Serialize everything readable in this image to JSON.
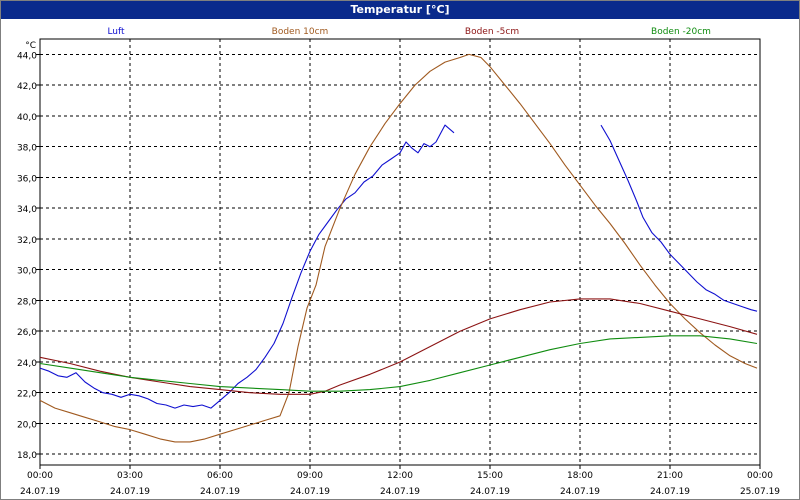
{
  "window": {
    "title": "Temperatur [°C]"
  },
  "chart_data": {
    "type": "line",
    "title": "Temperatur [°C]",
    "ylabel": "°C",
    "xlabel": "",
    "ylim": [
      17.3,
      45
    ],
    "xlim": [
      0,
      24
    ],
    "grid": true,
    "legend_position": "top",
    "y_ticks": [
      "18,0",
      "20,0",
      "22,0",
      "24,0",
      "26,0",
      "28,0",
      "30,0",
      "32,0",
      "34,0",
      "36,0",
      "38,0",
      "40,0",
      "42,0",
      "44,0"
    ],
    "x_ticks": [
      {
        "time": "00:00",
        "date": "24.07.19"
      },
      {
        "time": "03:00",
        "date": "24.07.19"
      },
      {
        "time": "06:00",
        "date": "24.07.19"
      },
      {
        "time": "09:00",
        "date": "24.07.19"
      },
      {
        "time": "12:00",
        "date": "24.07.19"
      },
      {
        "time": "15:00",
        "date": "24.07.19"
      },
      {
        "time": "18:00",
        "date": "24.07.19"
      },
      {
        "time": "21:00",
        "date": "24.07.19"
      },
      {
        "time": "00:00",
        "date": "25.07.19"
      }
    ],
    "series": [
      {
        "name": "Luft",
        "color": "#1010d0",
        "segments": [
          [
            [
              0,
              23.6
            ],
            [
              0.3,
              23.4
            ],
            [
              0.6,
              23.1
            ],
            [
              0.9,
              23.0
            ],
            [
              1.2,
              23.3
            ],
            [
              1.5,
              22.7
            ],
            [
              1.8,
              22.3
            ],
            [
              2.1,
              22.0
            ],
            [
              2.4,
              21.9
            ],
            [
              2.7,
              21.7
            ],
            [
              3.0,
              21.9
            ],
            [
              3.3,
              21.8
            ],
            [
              3.6,
              21.6
            ],
            [
              3.9,
              21.3
            ],
            [
              4.2,
              21.2
            ],
            [
              4.5,
              21.0
            ],
            [
              4.8,
              21.2
            ],
            [
              5.1,
              21.1
            ],
            [
              5.4,
              21.2
            ],
            [
              5.7,
              21.0
            ],
            [
              6.0,
              21.5
            ],
            [
              6.3,
              22.0
            ],
            [
              6.6,
              22.6
            ],
            [
              6.9,
              23.0
            ],
            [
              7.2,
              23.5
            ],
            [
              7.5,
              24.3
            ],
            [
              7.8,
              25.2
            ],
            [
              8.1,
              26.5
            ],
            [
              8.4,
              28.2
            ],
            [
              8.7,
              29.8
            ],
            [
              9.0,
              31.2
            ],
            [
              9.3,
              32.3
            ],
            [
              9.6,
              33.1
            ],
            [
              9.9,
              33.9
            ],
            [
              10.2,
              34.6
            ],
            [
              10.5,
              35.0
            ],
            [
              10.8,
              35.7
            ],
            [
              11.1,
              36.1
            ],
            [
              11.4,
              36.8
            ],
            [
              11.7,
              37.2
            ],
            [
              12.0,
              37.6
            ],
            [
              12.2,
              38.3
            ],
            [
              12.4,
              37.9
            ],
            [
              12.6,
              37.6
            ],
            [
              12.8,
              38.2
            ],
            [
              13.0,
              38.0
            ],
            [
              13.2,
              38.3
            ],
            [
              13.5,
              39.4
            ],
            [
              13.8,
              38.9
            ]
          ],
          [
            [
              18.7,
              39.4
            ],
            [
              19.0,
              38.4
            ],
            [
              19.3,
              37.1
            ],
            [
              19.6,
              35.8
            ],
            [
              19.9,
              34.4
            ],
            [
              20.1,
              33.4
            ],
            [
              20.4,
              32.4
            ],
            [
              20.7,
              31.8
            ],
            [
              21.0,
              31.0
            ],
            [
              21.3,
              30.4
            ],
            [
              21.6,
              29.8
            ],
            [
              21.9,
              29.2
            ],
            [
              22.2,
              28.7
            ],
            [
              22.5,
              28.4
            ],
            [
              22.8,
              28.0
            ],
            [
              23.1,
              27.8
            ],
            [
              23.4,
              27.6
            ],
            [
              23.7,
              27.4
            ],
            [
              23.9,
              27.3
            ]
          ]
        ]
      },
      {
        "name": "Boden 10cm",
        "color": "#a05a20",
        "segments": [
          [
            [
              0,
              21.5
            ],
            [
              0.5,
              21.0
            ],
            [
              1.0,
              20.7
            ],
            [
              1.5,
              20.4
            ],
            [
              2.0,
              20.1
            ],
            [
              2.5,
              19.8
            ],
            [
              3.0,
              19.6
            ],
            [
              3.5,
              19.3
            ],
            [
              4.0,
              19.0
            ],
            [
              4.5,
              18.8
            ],
            [
              5.0,
              18.8
            ],
            [
              5.5,
              19.0
            ],
            [
              6.0,
              19.3
            ],
            [
              6.5,
              19.6
            ],
            [
              7.0,
              19.9
            ],
            [
              7.5,
              20.2
            ],
            [
              8.0,
              20.5
            ],
            [
              8.3,
              22.0
            ],
            [
              8.6,
              25.0
            ],
            [
              8.9,
              27.5
            ],
            [
              9.2,
              29.0
            ],
            [
              9.5,
              31.5
            ],
            [
              10.0,
              34.0
            ],
            [
              10.5,
              36.2
            ],
            [
              11.0,
              38.0
            ],
            [
              11.5,
              39.5
            ],
            [
              12.0,
              40.8
            ],
            [
              12.5,
              42.0
            ],
            [
              13.0,
              42.9
            ],
            [
              13.5,
              43.5
            ],
            [
              14.0,
              43.8
            ],
            [
              14.3,
              44.0
            ],
            [
              14.7,
              43.8
            ],
            [
              15.0,
              43.2
            ],
            [
              15.5,
              42.0
            ],
            [
              16.0,
              40.8
            ],
            [
              16.5,
              39.5
            ],
            [
              17.0,
              38.2
            ],
            [
              17.5,
              36.8
            ],
            [
              18.0,
              35.5
            ],
            [
              18.5,
              34.2
            ],
            [
              19.0,
              33.0
            ],
            [
              19.5,
              31.7
            ],
            [
              20.0,
              30.3
            ],
            [
              20.5,
              29.0
            ],
            [
              21.0,
              27.8
            ],
            [
              21.5,
              26.8
            ],
            [
              22.0,
              25.9
            ],
            [
              22.5,
              25.1
            ],
            [
              23.0,
              24.4
            ],
            [
              23.5,
              23.9
            ],
            [
              23.9,
              23.6
            ]
          ]
        ]
      },
      {
        "name": "Boden -5cm",
        "color": "#8c1414",
        "segments": [
          [
            [
              0,
              24.3
            ],
            [
              1,
              23.9
            ],
            [
              2,
              23.4
            ],
            [
              3,
              23.0
            ],
            [
              4,
              22.7
            ],
            [
              5,
              22.4
            ],
            [
              6,
              22.2
            ],
            [
              7,
              22.0
            ],
            [
              8,
              21.9
            ],
            [
              9,
              21.9
            ],
            [
              9.5,
              22.1
            ],
            [
              10,
              22.5
            ],
            [
              11,
              23.2
            ],
            [
              12,
              24.0
            ],
            [
              13,
              25.0
            ],
            [
              14,
              26.0
            ],
            [
              15,
              26.8
            ],
            [
              16,
              27.4
            ],
            [
              17,
              27.9
            ],
            [
              18,
              28.1
            ],
            [
              19,
              28.1
            ],
            [
              20,
              27.8
            ],
            [
              21,
              27.3
            ],
            [
              22,
              26.8
            ],
            [
              23,
              26.3
            ],
            [
              23.9,
              25.8
            ]
          ]
        ]
      },
      {
        "name": "Boden -20cm",
        "color": "#108c10",
        "segments": [
          [
            [
              0,
              23.9
            ],
            [
              1,
              23.6
            ],
            [
              2,
              23.3
            ],
            [
              3,
              23.0
            ],
            [
              4,
              22.8
            ],
            [
              5,
              22.6
            ],
            [
              6,
              22.4
            ],
            [
              7,
              22.3
            ],
            [
              8,
              22.2
            ],
            [
              9,
              22.1
            ],
            [
              10,
              22.1
            ],
            [
              11,
              22.2
            ],
            [
              12,
              22.4
            ],
            [
              13,
              22.8
            ],
            [
              14,
              23.3
            ],
            [
              15,
              23.8
            ],
            [
              16,
              24.3
            ],
            [
              17,
              24.8
            ],
            [
              18,
              25.2
            ],
            [
              19,
              25.5
            ],
            [
              20,
              25.6
            ],
            [
              21,
              25.7
            ],
            [
              22,
              25.7
            ],
            [
              23,
              25.5
            ],
            [
              23.9,
              25.2
            ]
          ]
        ]
      }
    ]
  }
}
